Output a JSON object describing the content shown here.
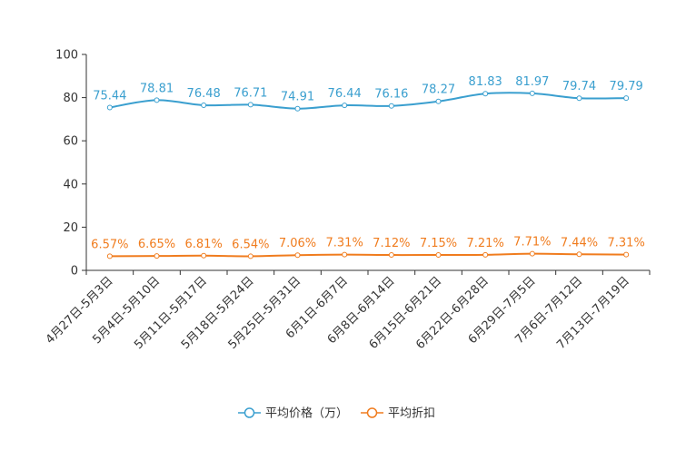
{
  "chart_data": {
    "type": "line",
    "title": "",
    "xlabel": "",
    "ylabel": "",
    "ylim": [
      0,
      100
    ],
    "yticks": [
      0,
      20,
      40,
      60,
      80,
      100
    ],
    "ytick_labels": [
      "0",
      "20",
      "40",
      "60",
      "80",
      "100"
    ],
    "grid": false,
    "legend_position": "bottom-center",
    "categories": [
      "4月27日-5月3日",
      "5月4日-5月10日",
      "5月11日-5月17日",
      "5月18日-5月24日",
      "5月25日-5月31日",
      "6月1日-6月7日",
      "6月8日-6月14日",
      "6月15日-6月21日",
      "6月22日-6月28日",
      "6月29日-7月5日",
      "7月6日-7月12日",
      "7月13日-7月19日"
    ],
    "series": [
      {
        "name": "平均价格（万）",
        "color": "#3a9fcf",
        "values": [
          75.44,
          78.81,
          76.48,
          76.71,
          74.91,
          76.44,
          76.16,
          78.27,
          81.83,
          81.97,
          79.74,
          79.79
        ],
        "labels": [
          "75.44",
          "78.81",
          "76.48",
          "76.71",
          "74.91",
          "76.44",
          "76.16",
          "78.27",
          "81.83",
          "81.97",
          "79.74",
          "79.79"
        ]
      },
      {
        "name": "平均折扣",
        "color": "#f07c1e",
        "values": [
          6.57,
          6.65,
          6.81,
          6.54,
          7.06,
          7.31,
          7.12,
          7.15,
          7.21,
          7.71,
          7.44,
          7.31
        ],
        "labels": [
          "6.57%",
          "6.65%",
          "6.81%",
          "6.54%",
          "7.06%",
          "7.31%",
          "7.12%",
          "7.15%",
          "7.21%",
          "7.71%",
          "7.44%",
          "7.31%"
        ]
      }
    ]
  }
}
